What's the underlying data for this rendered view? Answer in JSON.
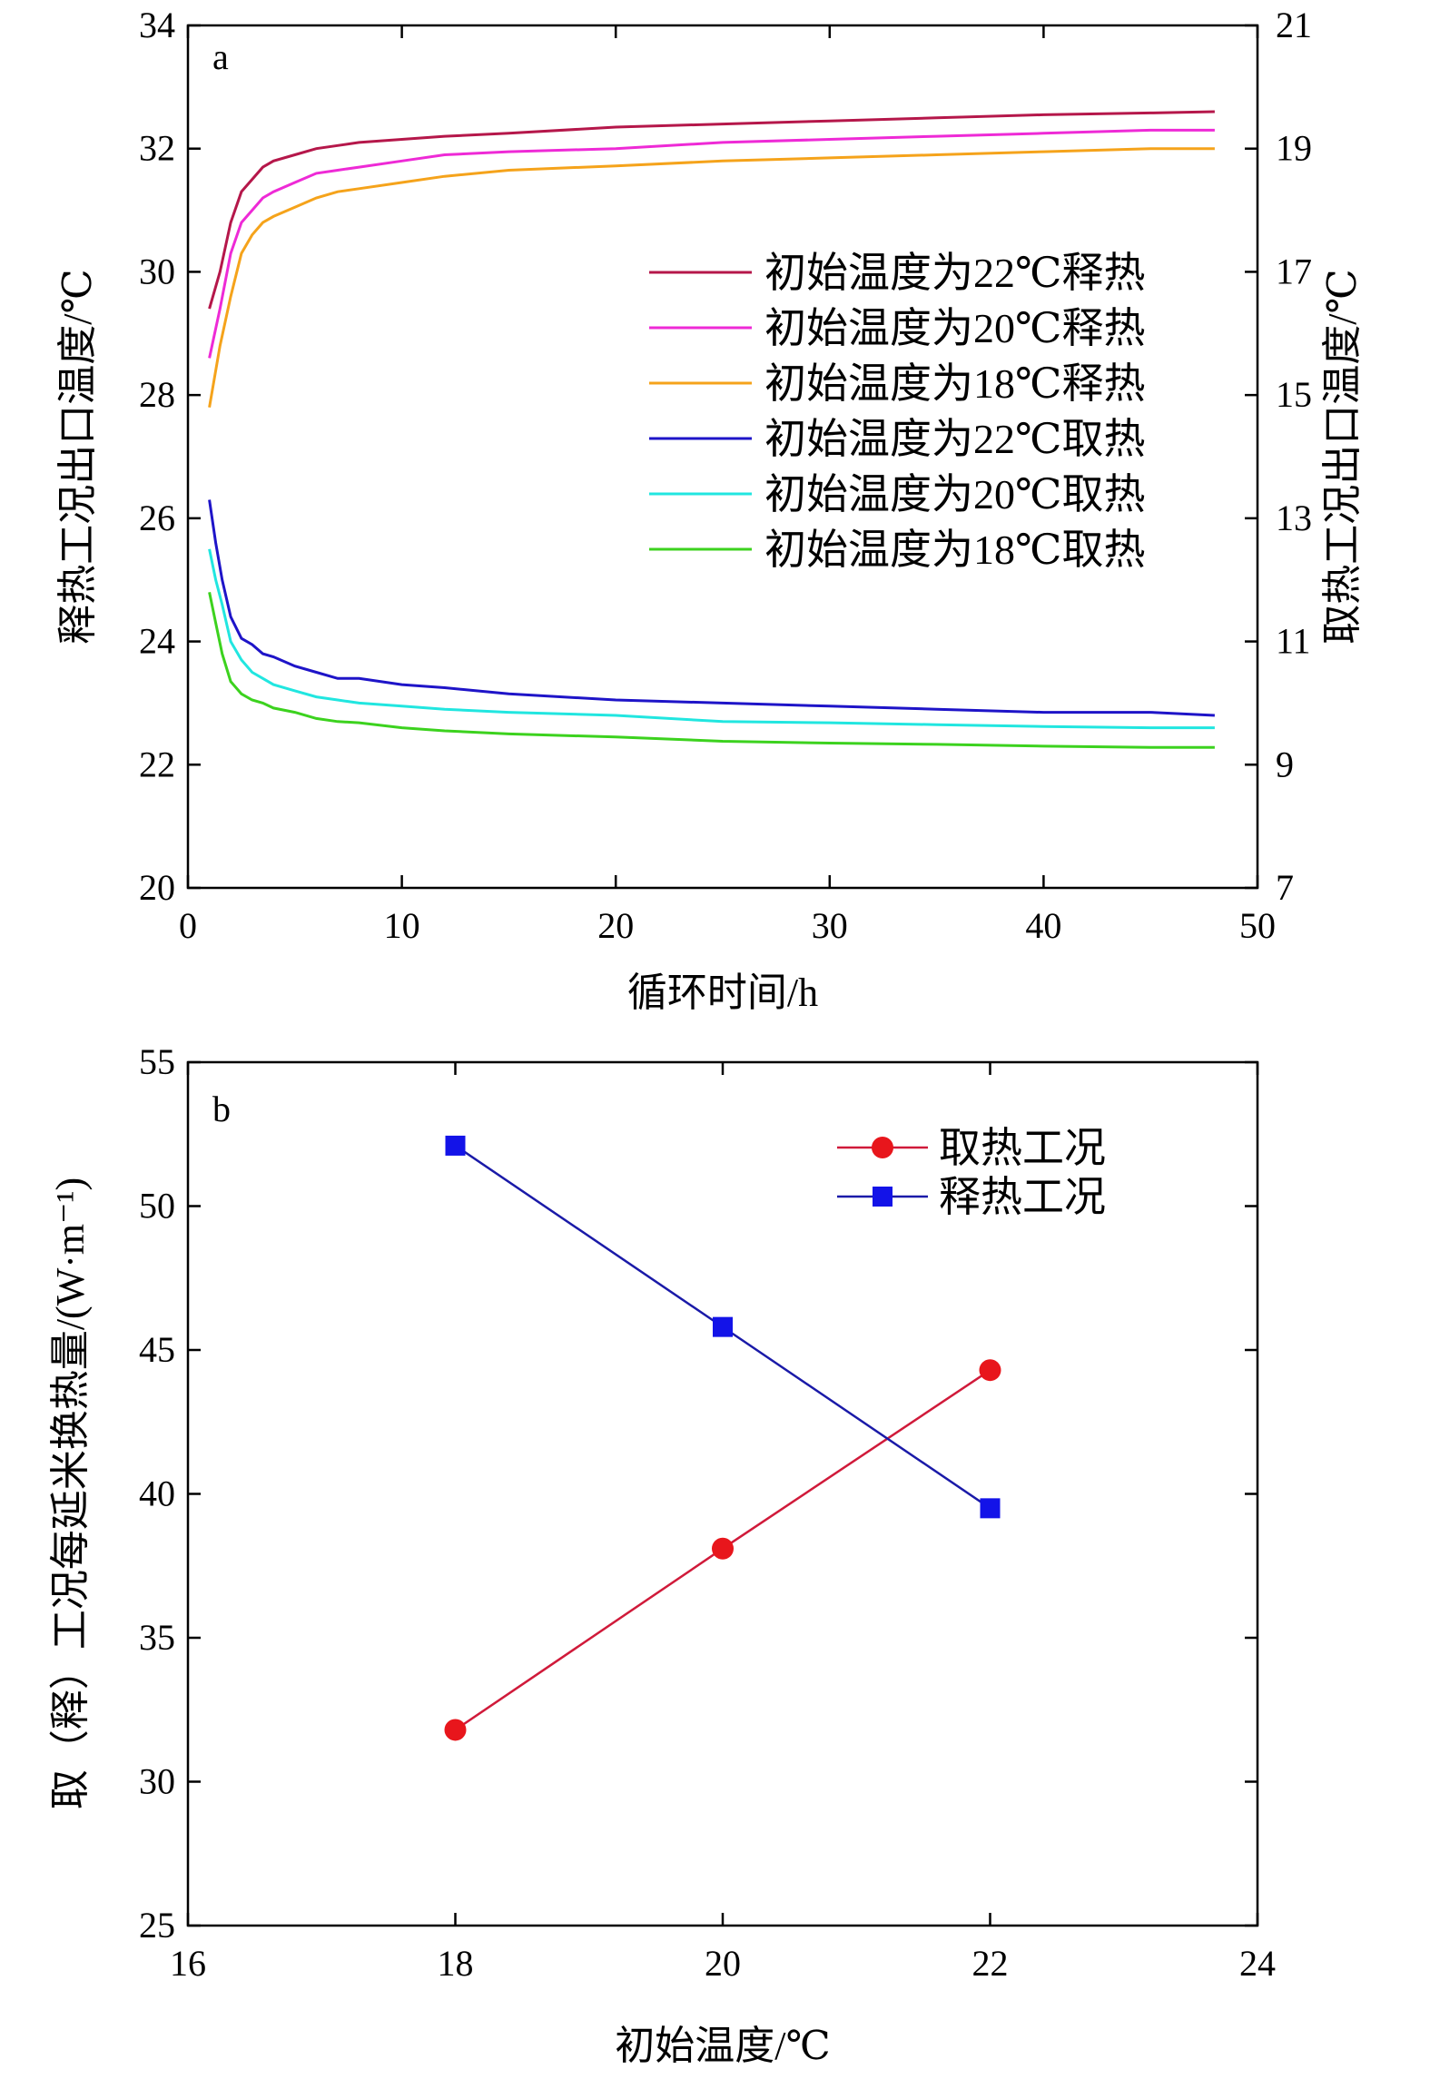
{
  "chart_data": [
    {
      "panel": "a",
      "type": "line",
      "xlabel": "循环时间/h",
      "ylabel_left": "释热工况出口温度/℃",
      "ylabel_right": "取热工况出口温度/℃",
      "xlim": [
        0,
        50
      ],
      "ylim_left": [
        20,
        34
      ],
      "ylim_right": [
        7,
        21
      ],
      "x_ticks": [
        0,
        10,
        20,
        30,
        40,
        50
      ],
      "y_ticks_left": [
        20,
        22,
        24,
        26,
        28,
        30,
        32,
        34
      ],
      "y_ticks_right": [
        7,
        9,
        11,
        13,
        15,
        17,
        19,
        21
      ],
      "grid": false,
      "legend_position": "right-middle",
      "series": [
        {
          "name": "初始温度为22℃释热",
          "color": "#b5174a",
          "axis": "left",
          "x": [
            1,
            1.5,
            2,
            2.5,
            3,
            3.5,
            4,
            5,
            6,
            7,
            8,
            10,
            12,
            15,
            20,
            25,
            30,
            35,
            40,
            45,
            48
          ],
          "y": [
            29.4,
            30.0,
            30.8,
            31.3,
            31.5,
            31.7,
            31.8,
            31.9,
            32.0,
            32.05,
            32.1,
            32.15,
            32.2,
            32.25,
            32.35,
            32.4,
            32.45,
            32.5,
            32.55,
            32.58,
            32.6
          ]
        },
        {
          "name": "初始温度为20℃释热",
          "color": "#ee2ad6",
          "axis": "left",
          "x": [
            1,
            1.5,
            2,
            2.5,
            3,
            3.5,
            4,
            5,
            6,
            7,
            8,
            10,
            12,
            15,
            20,
            25,
            30,
            35,
            40,
            45,
            48
          ],
          "y": [
            28.6,
            29.4,
            30.3,
            30.8,
            31.0,
            31.2,
            31.3,
            31.45,
            31.6,
            31.65,
            31.7,
            31.8,
            31.9,
            31.95,
            32.0,
            32.1,
            32.15,
            32.2,
            32.25,
            32.3,
            32.3
          ]
        },
        {
          "name": "初始温度为18℃释热",
          "color": "#f5a31b",
          "axis": "left",
          "x": [
            1,
            1.5,
            2,
            2.5,
            3,
            3.5,
            4,
            5,
            6,
            7,
            8,
            10,
            12,
            15,
            20,
            25,
            30,
            35,
            40,
            45,
            48
          ],
          "y": [
            27.8,
            28.8,
            29.6,
            30.3,
            30.6,
            30.8,
            30.9,
            31.05,
            31.2,
            31.3,
            31.35,
            31.45,
            31.55,
            31.65,
            31.72,
            31.8,
            31.85,
            31.9,
            31.95,
            32.0,
            32.0
          ]
        },
        {
          "name": "初始温度为22℃取热",
          "color": "#1e14c8",
          "axis": "right",
          "x": [
            1,
            1.3,
            1.6,
            2,
            2.5,
            3,
            3.5,
            4,
            5,
            6,
            7,
            8,
            10,
            12,
            15,
            20,
            25,
            30,
            35,
            40,
            45,
            48
          ],
          "y": [
            13.3,
            12.6,
            12.0,
            11.4,
            11.05,
            10.95,
            10.8,
            10.75,
            10.6,
            10.5,
            10.4,
            10.4,
            10.3,
            10.25,
            10.15,
            10.05,
            10.0,
            9.95,
            9.9,
            9.85,
            9.85,
            9.8
          ]
        },
        {
          "name": "初始温度为20℃取热",
          "color": "#21e6e0",
          "axis": "right",
          "x": [
            1,
            1.3,
            1.6,
            2,
            2.5,
            3,
            3.5,
            4,
            5,
            6,
            7,
            8,
            10,
            12,
            15,
            20,
            25,
            30,
            35,
            40,
            45,
            48
          ],
          "y": [
            12.5,
            12.0,
            11.6,
            11.0,
            10.7,
            10.5,
            10.4,
            10.3,
            10.2,
            10.1,
            10.05,
            10.0,
            9.95,
            9.9,
            9.85,
            9.8,
            9.7,
            9.68,
            9.65,
            9.62,
            9.6,
            9.6
          ]
        },
        {
          "name": "初始温度为18℃取热",
          "color": "#3cd21e",
          "axis": "right",
          "x": [
            1,
            1.3,
            1.6,
            2,
            2.5,
            3,
            3.5,
            4,
            5,
            6,
            7,
            8,
            10,
            12,
            15,
            20,
            25,
            30,
            35,
            40,
            45,
            48
          ],
          "y": [
            11.8,
            11.3,
            10.8,
            10.35,
            10.15,
            10.05,
            10.0,
            9.92,
            9.85,
            9.75,
            9.7,
            9.68,
            9.6,
            9.55,
            9.5,
            9.45,
            9.38,
            9.35,
            9.33,
            9.3,
            9.28,
            9.28
          ]
        }
      ]
    },
    {
      "panel": "b",
      "type": "line",
      "xlabel": "初始温度/℃",
      "ylabel": "取（释）工况每延米换热量/(W·m⁻¹)",
      "xlim": [
        16,
        24
      ],
      "ylim": [
        25,
        55
      ],
      "x_ticks": [
        16,
        18,
        20,
        22,
        24
      ],
      "y_ticks": [
        25,
        30,
        35,
        40,
        45,
        50,
        55
      ],
      "grid": false,
      "legend_position": "top-right",
      "series": [
        {
          "name": "取热工况",
          "color": "#e8161c",
          "line_color": "#d01a3a",
          "marker": "circle",
          "x": [
            18,
            20,
            22
          ],
          "y": [
            31.8,
            38.1,
            44.3
          ]
        },
        {
          "name": "释热工况",
          "color": "#1313e8",
          "line_color": "#1a1aa8",
          "marker": "square",
          "x": [
            18,
            20,
            22
          ],
          "y": [
            52.1,
            45.8,
            39.5
          ]
        }
      ]
    }
  ]
}
